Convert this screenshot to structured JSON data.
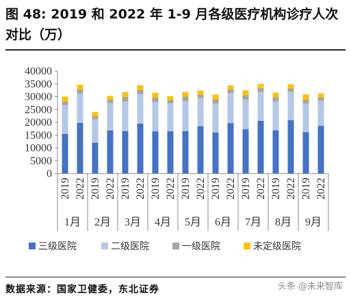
{
  "title": "图 48: 2019 和 2022 年 1-9 月各级医疗机构诊疗人次对比（万）",
  "source": "数据来源：国家卫健委，东北证券",
  "watermark": "头条 @未来智库",
  "colors": {
    "三级医院": "#4472c4",
    "二级医院": "#b4c7e7",
    "一级医院": "#a5a5a5",
    "未定级医院": "#ffc000"
  },
  "chart_data": {
    "type": "bar",
    "stacked": true,
    "months": [
      "1月",
      "2月",
      "3月",
      "4月",
      "5月",
      "6月",
      "7月",
      "8月",
      "9月"
    ],
    "years": [
      "2019",
      "2022"
    ],
    "categories": [
      "2019",
      "2022",
      "2019",
      "2022",
      "2019",
      "2022",
      "2019",
      "2022",
      "2019",
      "2022",
      "2019",
      "2022",
      "2019",
      "2022",
      "2019",
      "2022",
      "2019",
      "2022"
    ],
    "ylim": [
      0,
      40000
    ],
    "yticks": [
      0,
      5000,
      10000,
      15000,
      20000,
      25000,
      30000,
      35000,
      40000
    ],
    "legend_position": "bottom",
    "series": [
      {
        "name": "三级医院",
        "values": [
          15500,
          19800,
          12000,
          16800,
          16600,
          19500,
          16500,
          16500,
          16600,
          18500,
          16000,
          19700,
          17300,
          20600,
          16900,
          20800,
          16200,
          18600
        ]
      },
      {
        "name": "二级医院",
        "values": [
          11200,
          11400,
          9100,
          10700,
          11500,
          11500,
          11500,
          10900,
          11700,
          11000,
          11300,
          11700,
          11600,
          11200,
          11200,
          11100,
          11100,
          9800
        ]
      },
      {
        "name": "一级医院",
        "values": [
          1500,
          1700,
          1300,
          1300,
          1800,
          1700,
          1700,
          1300,
          1700,
          1300,
          1700,
          1400,
          1700,
          1600,
          1700,
          1300,
          1700,
          1300
        ]
      },
      {
        "name": "未定级医院",
        "values": [
          1800,
          1800,
          1600,
          1500,
          1900,
          1800,
          1800,
          1500,
          1800,
          1600,
          1800,
          1600,
          1900,
          1600,
          1800,
          1600,
          1900,
          1600
        ]
      }
    ]
  }
}
